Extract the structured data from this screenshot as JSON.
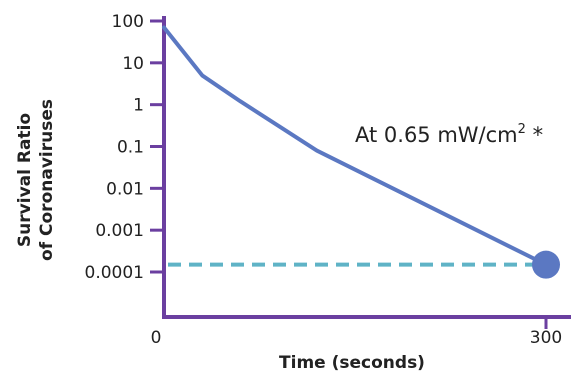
{
  "chart_data": {
    "type": "line",
    "title": "",
    "xlabel": "Time (seconds)",
    "ylabel_lines": [
      "Survival Ratio",
      "of Coronaviruses"
    ],
    "yscale": "log",
    "xlim": [
      0,
      300
    ],
    "ylim": [
      0.0001,
      100
    ],
    "x_tick_labels": [
      "0",
      "300"
    ],
    "y_tick_labels": [
      "100",
      "10",
      "1",
      "0.1",
      "0.01",
      "0.001",
      "0.0001"
    ],
    "series": [
      {
        "x": [
          0,
          30,
          60,
          120,
          300
        ],
        "y": [
          70,
          5,
          1.2,
          0.08,
          0.00015
        ]
      }
    ],
    "reference_line": {
      "y": 0.00015,
      "style": "dashed"
    },
    "end_marker": {
      "x": 300,
      "y": 0.00015
    },
    "annotation": {
      "text_main": "At 0.65 mW/cm",
      "text_sup": "2",
      "text_tail": " *"
    },
    "grid": false,
    "legend": "none",
    "colors": {
      "axis": "#6b3fa0",
      "line": "#5b78c2",
      "reference": "#5fb3c6",
      "marker": "#5b78c2",
      "text": "#222222"
    }
  }
}
